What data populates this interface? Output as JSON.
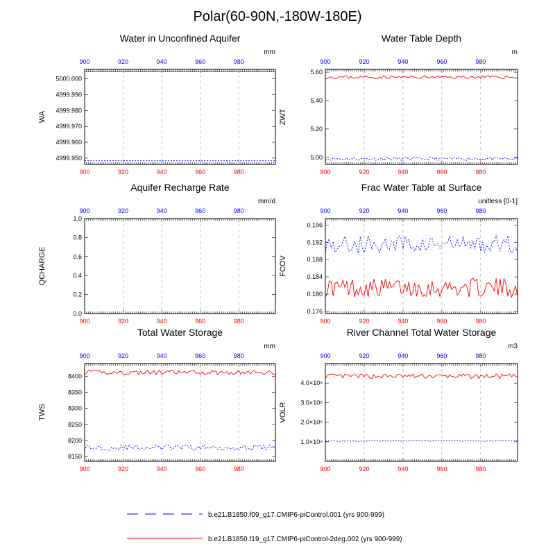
{
  "figure": {
    "title": "Polar(60-90N,-180W-180E)",
    "colors": {
      "series_blue": "#0000ff",
      "series_red": "#ff0000",
      "grid": "#999999",
      "axis": "#000000"
    }
  },
  "legend": {
    "items": [
      {
        "label": "b.e21.B1850.f09_g17.CMIP6-piControl.001 (yrs 900-999)",
        "color": "#0000ff",
        "style": "dashed"
      },
      {
        "label": "b.e21.B1850.f19_g17.CMIP6-piControl-2deg.002 (yrs 900-999)",
        "color": "#ff0000",
        "style": "solid"
      }
    ]
  },
  "chart_data": [
    {
      "type": "line",
      "title": "Water in Unconfined Aquifer",
      "ylabel": "WA",
      "units": "mm",
      "xlim": [
        900,
        999
      ],
      "ylim": [
        4999.946,
        5000.006
      ],
      "xticks": [
        900,
        920,
        940,
        960,
        980
      ],
      "yticks": [
        4999.95,
        4999.96,
        4999.97,
        4999.98,
        4999.99,
        5000.0
      ],
      "ytick_labels": [
        "4999.950",
        "4999.960",
        "4999.970",
        "4999.980",
        "4999.990",
        "5000.000"
      ],
      "top_tick_labels": [
        "900",
        "920",
        "940",
        "960",
        "980"
      ],
      "bottom_tick_labels": [
        "900",
        "920",
        "940",
        "960",
        "980"
      ],
      "series": [
        {
          "color": "#0000ff",
          "style": "dashed",
          "base": 4999.9483,
          "amp": 0.0
        },
        {
          "color": "#ff0000",
          "style": "solid",
          "base": 5000.0045,
          "amp": 0.0
        }
      ]
    },
    {
      "type": "line",
      "title": "Water Table Depth",
      "ylabel": "ZWT",
      "units": "m",
      "xlim": [
        900,
        999
      ],
      "ylim": [
        4.95,
        5.62
      ],
      "xticks": [
        900,
        920,
        940,
        960,
        980
      ],
      "yticks": [
        5.0,
        5.2,
        5.4,
        5.6
      ],
      "ytick_labels": [
        "5.00",
        "5.20",
        "5.40",
        "5.60"
      ],
      "top_tick_labels": [
        "900",
        "920",
        "940",
        "960",
        "980"
      ],
      "bottom_tick_labels": [
        "900",
        "920",
        "940",
        "960",
        "980"
      ],
      "series": [
        {
          "color": "#0000ff",
          "style": "dashed",
          "base": 4.99,
          "amp": 0.012,
          "seed": 11
        },
        {
          "color": "#ff0000",
          "style": "solid",
          "base": 5.565,
          "amp": 0.011,
          "seed": 23
        }
      ]
    },
    {
      "type": "line",
      "title": "Aquifer Recharge Rate",
      "ylabel": "QCHARGE",
      "units": "mm/d",
      "xlim": [
        900,
        999
      ],
      "ylim": [
        0.0,
        1.0
      ],
      "xticks": [
        900,
        920,
        940,
        960,
        980
      ],
      "yticks": [
        0.0,
        0.2,
        0.4,
        0.6,
        0.8,
        1.0
      ],
      "ytick_labels": [
        "0.0",
        "0.2",
        "0.4",
        "0.6",
        "0.8",
        "1.0"
      ],
      "top_tick_labels": [
        "900",
        "920",
        "940",
        "960",
        "980"
      ],
      "bottom_tick_labels": [
        "900",
        "920",
        "940",
        "960",
        "980"
      ],
      "series": [
        {
          "color": "#ff0000",
          "style": "solid",
          "base": 0.0,
          "amp": 0.0
        },
        {
          "color": "#0000ff",
          "style": "dashed",
          "base": 0.0,
          "amp": 0.0
        }
      ]
    },
    {
      "type": "line",
      "title": "Frac Water Table at Surface",
      "ylabel": "FCOV",
      "units": "unitless [0-1]",
      "xlim": [
        900,
        999
      ],
      "ylim": [
        0.1755,
        0.1975
      ],
      "xticks": [
        900,
        920,
        940,
        960,
        980
      ],
      "yticks": [
        0.176,
        0.18,
        0.184,
        0.188,
        0.192,
        0.196
      ],
      "ytick_labels": [
        "0.176",
        "0.180",
        "0.184",
        "0.188",
        "0.192",
        "0.196"
      ],
      "top_tick_labels": [
        "900",
        "920",
        "940",
        "960",
        "980"
      ],
      "bottom_tick_labels": [
        "900",
        "920",
        "940",
        "960",
        "980"
      ],
      "series": [
        {
          "color": "#0000ff",
          "style": "dashed",
          "base": 0.1915,
          "amp": 0.0022,
          "seed": 5
        },
        {
          "color": "#ff0000",
          "style": "solid",
          "base": 0.1815,
          "amp": 0.0022,
          "seed": 17
        }
      ]
    },
    {
      "type": "line",
      "title": "Total Water Storage",
      "ylabel": "TWS",
      "units": "mm",
      "xlim": [
        900,
        999
      ],
      "ylim": [
        8135,
        8440
      ],
      "xticks": [
        900,
        920,
        940,
        960,
        980
      ],
      "yticks": [
        8150,
        8200,
        8250,
        8300,
        8350,
        8400
      ],
      "ytick_labels": [
        "8150",
        "8200",
        "8250",
        "8300",
        "8350",
        "8400"
      ],
      "top_tick_labels": [
        "900",
        "920",
        "940",
        "960",
        "980"
      ],
      "bottom_tick_labels": [
        "900",
        "920",
        "940",
        "960",
        "980"
      ],
      "series": [
        {
          "color": "#0000ff",
          "style": "dashed",
          "base": 8178,
          "amp": 9,
          "seed": 29
        },
        {
          "color": "#ff0000",
          "style": "solid",
          "base": 8412,
          "amp": 7,
          "seed": 41
        }
      ]
    },
    {
      "type": "line",
      "title": "River Channel Total Water Storage",
      "ylabel": "VOLR",
      "units": "m3",
      "xlim": [
        900,
        999
      ],
      "ylim": [
        0.0,
        5.0
      ],
      "xticks": [
        900,
        920,
        940,
        960,
        980
      ],
      "yticks": [
        1.0,
        2.0,
        3.0,
        4.0
      ],
      "ytick_labels": [
        "1.0×10⁸",
        "2.0×10⁸",
        "3.0×10⁸",
        "4.0×10⁸"
      ],
      "top_tick_labels": [
        "900",
        "920",
        "940",
        "960",
        "980"
      ],
      "bottom_tick_labels": [
        "900",
        "920",
        "940",
        "960",
        "980"
      ],
      "series": [
        {
          "color": "#0000ff",
          "style": "dashed",
          "base": 1.05,
          "amp": 0.03,
          "seed": 3
        },
        {
          "color": "#ff0000",
          "style": "solid",
          "base": 4.35,
          "amp": 0.12,
          "seed": 13
        }
      ]
    }
  ]
}
